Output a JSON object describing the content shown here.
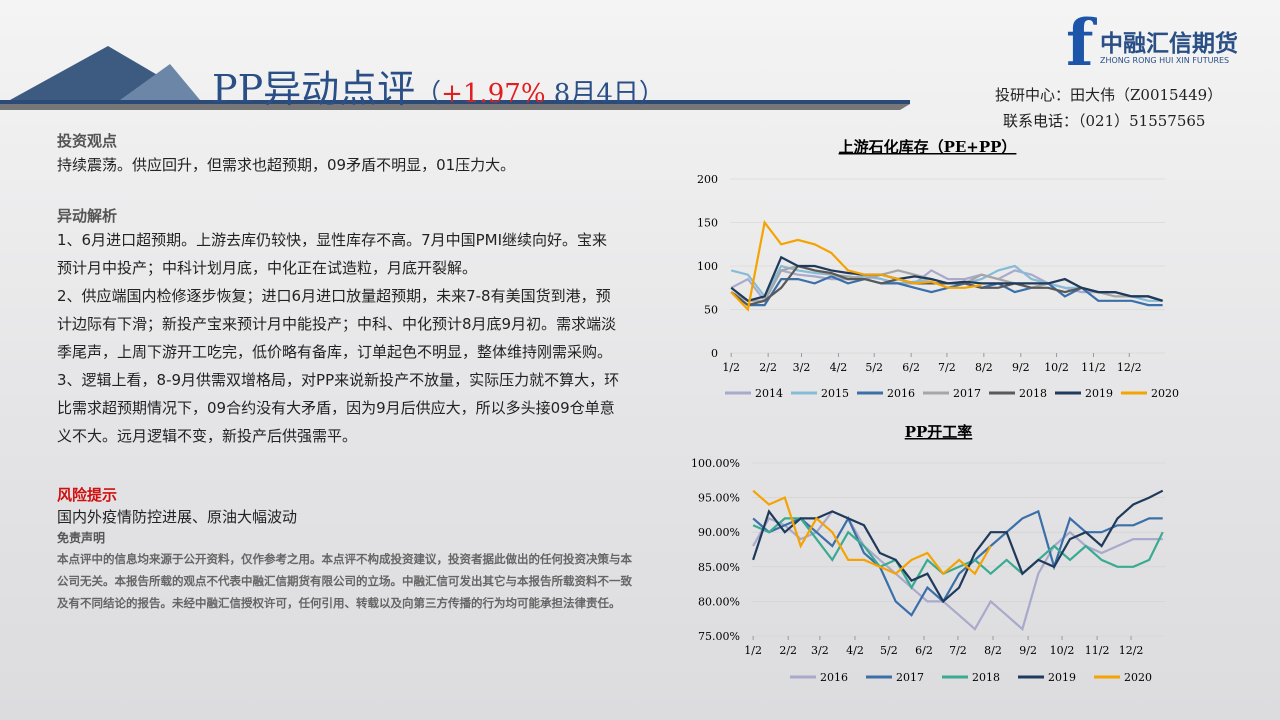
{
  "header": {
    "title": "PP异动点评",
    "subtitle_parts": [
      "（",
      "+1.97%",
      " 8月4日）"
    ]
  },
  "logo": {
    "name": "中融汇信期货",
    "english": "ZHONG RONG HUI XIN FUTURES"
  },
  "contact": [
    "投研中心：田大伟（Z0015449）",
    "联系电话：（021）51557565"
  ],
  "view": {
    "heading": "投资观点",
    "text": "持续震荡。供应回升，但需求也超预期，09矛盾不明显，01压力大。"
  },
  "analysis": {
    "heading": "异动解析",
    "paragraphs": [
      "1、6月进口超预期。上游去库仍较快，显性库存不高。7月中国PMI继续向好。宝来预计月中投产；中科计划月底，中化正在试造粒，月底开裂解。",
      "2、供应端国内检修逐步恢复；进口6月进口放量超预期，未来7-8有美国货到港，预计边际有下滑；新投产宝来预计月中能投产；中科、中化预计8月底9月初。需求端淡季尾声，上周下游开工吃完，低价略有备库，订单起色不明显，整体维持刚需采购。",
      "3、逻辑上看，8-9月供需双增格局，对PP来说新投产不放量，实际压力就不算大，环比需求超预期情况下，09合约没有大矛盾，因为9月后供应大，所以多头接09仓单意义不大。远月逻辑不变，新投产后供强需平。"
    ]
  },
  "risk": {
    "heading": "风险提示",
    "text": "国内外疫情防控进展、原油大幅波动"
  },
  "disclaimer": {
    "heading": "免责声明",
    "text": "本点评中的信息均来源于公开资料，仅作参考之用。本点评不构成投资建议，投资者据此做出的任何投资决策与本公司无关。本报告所载的观点不代表中融汇信期货有限公司的立场。中融汇信可发出其它与本报告所载资料不一致及有不同结论的报告。未经中融汇信授权许可，任何引用、转载以及向第三方传播的行为均可能承担法律责任。"
  },
  "chart_data": [
    {
      "type": "line",
      "title": "上游石化库存（PE+PP）",
      "x": [
        2,
        16,
        30,
        44,
        58,
        72,
        86,
        100,
        114,
        128,
        142,
        156,
        170,
        184,
        198,
        212,
        226,
        240,
        254,
        268,
        282,
        296,
        310,
        324,
        338,
        352,
        364
      ],
      "xlim": [
        1,
        366
      ],
      "xticks": [
        {
          "value": 2,
          "label": "1/2"
        },
        {
          "value": 33,
          "label": "2/2"
        },
        {
          "value": 61,
          "label": "3/2"
        },
        {
          "value": 92,
          "label": "4/2"
        },
        {
          "value": 122,
          "label": "5/2"
        },
        {
          "value": 153,
          "label": "6/2"
        },
        {
          "value": 183,
          "label": "7/2"
        },
        {
          "value": 214,
          "label": "8/2"
        },
        {
          "value": 245,
          "label": "9/2"
        },
        {
          "value": 275,
          "label": "10/2"
        },
        {
          "value": 306,
          "label": "11/2"
        },
        {
          "value": 336,
          "label": "12/2"
        }
      ],
      "ylim": [
        0,
        200
      ],
      "yticks": [
        0,
        50,
        100,
        150,
        200
      ],
      "series": [
        {
          "name": "2014",
          "color": "#a9a9cc",
          "values": [
            75,
            85,
            60,
            95,
            90,
            88,
            85,
            85,
            90,
            85,
            80,
            80,
            95,
            85,
            85,
            90,
            85,
            95,
            90,
            80,
            75,
            70,
            70,
            70,
            65,
            65,
            60
          ]
        },
        {
          "name": "2015",
          "color": "#86bcd6",
          "values": [
            95,
            90,
            65,
            100,
            95,
            92,
            90,
            85,
            88,
            85,
            80,
            82,
            85,
            80,
            80,
            85,
            95,
            100,
            85,
            80,
            75,
            75,
            70,
            70,
            65,
            60,
            60
          ]
        },
        {
          "name": "2016",
          "color": "#3a6fa8",
          "values": [
            70,
            55,
            55,
            85,
            85,
            80,
            88,
            80,
            85,
            80,
            80,
            75,
            70,
            75,
            80,
            75,
            80,
            70,
            75,
            80,
            65,
            75,
            60,
            60,
            60,
            55,
            55
          ]
        },
        {
          "name": "2017",
          "color": "#a6a6a6",
          "values": [
            70,
            60,
            60,
            95,
            100,
            95,
            90,
            88,
            85,
            90,
            95,
            90,
            85,
            80,
            80,
            90,
            85,
            80,
            75,
            80,
            85,
            75,
            70,
            65,
            65,
            65,
            60
          ]
        },
        {
          "name": "2018",
          "color": "#595959",
          "values": [
            70,
            55,
            60,
            75,
            100,
            95,
            92,
            85,
            85,
            80,
            85,
            80,
            80,
            80,
            80,
            75,
            75,
            80,
            75,
            75,
            70,
            75,
            70,
            70,
            65,
            65,
            60
          ]
        },
        {
          "name": "2019",
          "color": "#1f3a5a",
          "values": [
            75,
            60,
            65,
            110,
            100,
            100,
            95,
            92,
            90,
            90,
            85,
            88,
            85,
            80,
            82,
            80,
            80,
            80,
            80,
            80,
            85,
            75,
            70,
            70,
            65,
            65,
            60
          ]
        },
        {
          "name": "2020",
          "color": "#f5a300",
          "values": [
            70,
            50,
            150,
            125,
            130,
            125,
            115,
            95,
            90,
            90,
            85,
            80,
            82,
            75,
            75,
            78,
            null,
            null,
            null,
            null,
            null,
            null,
            null,
            null,
            null,
            null,
            null
          ]
        }
      ]
    },
    {
      "type": "line",
      "title": "PP开工率",
      "x": [
        2,
        16,
        30,
        44,
        58,
        72,
        86,
        100,
        114,
        128,
        142,
        156,
        170,
        184,
        198,
        212,
        226,
        240,
        254,
        268,
        282,
        296,
        310,
        324,
        338,
        352,
        364
      ],
      "xlim": [
        1,
        366
      ],
      "xticks": [
        {
          "value": 2,
          "label": "1/2"
        },
        {
          "value": 33,
          "label": "2/2"
        },
        {
          "value": 61,
          "label": "3/2"
        },
        {
          "value": 92,
          "label": "4/2"
        },
        {
          "value": 122,
          "label": "5/2"
        },
        {
          "value": 153,
          "label": "6/2"
        },
        {
          "value": 183,
          "label": "7/2"
        },
        {
          "value": 214,
          "label": "8/2"
        },
        {
          "value": 245,
          "label": "9/2"
        },
        {
          "value": 275,
          "label": "10/2"
        },
        {
          "value": 306,
          "label": "11/2"
        },
        {
          "value": 336,
          "label": "12/2"
        }
      ],
      "ylim": [
        75,
        100
      ],
      "yticks": [
        {
          "value": 75,
          "label": "75.00%"
        },
        {
          "value": 80,
          "label": "80.00%"
        },
        {
          "value": 85,
          "label": "85.00%"
        },
        {
          "value": 90,
          "label": "90.00%"
        },
        {
          "value": 95,
          "label": "95.00%"
        },
        {
          "value": 100,
          "label": "100.00%"
        }
      ],
      "series": [
        {
          "name": "2016",
          "color": "#a9a9cc",
          "values": [
            88,
            92,
            91,
            89,
            90,
            93,
            92,
            88,
            86,
            84,
            82,
            80,
            80,
            78,
            76,
            80,
            78,
            76,
            84,
            88,
            90,
            88,
            87,
            88,
            89,
            89,
            89
          ]
        },
        {
          "name": "2017",
          "color": "#3a6fa8",
          "values": [
            92,
            90,
            91,
            92,
            90,
            88,
            92,
            87,
            85,
            80,
            78,
            82,
            80,
            84,
            86,
            88,
            90,
            92,
            93,
            85,
            92,
            90,
            90,
            91,
            91,
            92,
            92
          ]
        },
        {
          "name": "2018",
          "color": "#3aaa90",
          "values": [
            91,
            90,
            92,
            92,
            89,
            86,
            90,
            88,
            85,
            86,
            82,
            86,
            84,
            85,
            86,
            84,
            86,
            84,
            86,
            88,
            86,
            88,
            86,
            85,
            85,
            86,
            90
          ]
        },
        {
          "name": "2019",
          "color": "#1f3a5a",
          "values": [
            86,
            93,
            90,
            92,
            92,
            93,
            92,
            91,
            87,
            86,
            83,
            84,
            80,
            82,
            87,
            90,
            90,
            84,
            86,
            85,
            89,
            90,
            88,
            92,
            94,
            95,
            96
          ]
        },
        {
          "name": "2020",
          "color": "#f5a300",
          "values": [
            96,
            94,
            95,
            88,
            92,
            90,
            86,
            86,
            85,
            84,
            86,
            87,
            84,
            86,
            84,
            88,
            null,
            null,
            null,
            null,
            null,
            null,
            null,
            null,
            null,
            null,
            null
          ]
        }
      ]
    }
  ]
}
